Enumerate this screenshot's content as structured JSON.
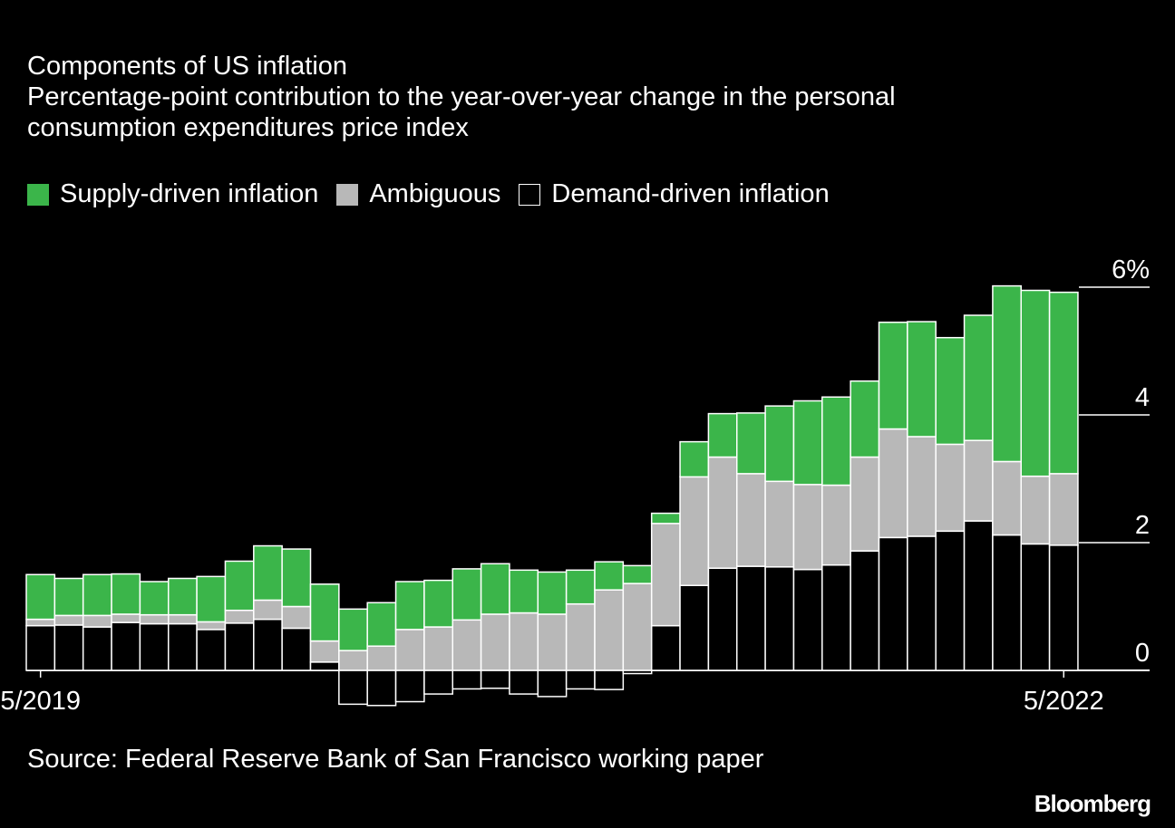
{
  "header": {
    "title": "Components of US inflation",
    "subtitle": "Percentage-point contribution to the year-over-year change in the personal consumption expenditures price index"
  },
  "legend": [
    {
      "label": "Supply-driven inflation",
      "color": "#3bb54a"
    },
    {
      "label": "Ambiguous",
      "color": "#b8b8b8"
    },
    {
      "label": "Demand-driven inflation",
      "color": "#000000"
    }
  ],
  "footer": {
    "source": "Source: Federal Reserve Bank of San Francisco working paper",
    "brand": "Bloomberg"
  },
  "chart_data": {
    "type": "bar",
    "stacked": true,
    "x": [
      "5/2019",
      "6/2019",
      "7/2019",
      "8/2019",
      "9/2019",
      "10/2019",
      "11/2019",
      "12/2019",
      "1/2020",
      "2/2020",
      "3/2020",
      "4/2020",
      "5/2020",
      "6/2020",
      "7/2020",
      "8/2020",
      "9/2020",
      "10/2020",
      "11/2020",
      "12/2020",
      "1/2021",
      "2/2021",
      "3/2021",
      "4/2021",
      "5/2021",
      "6/2021",
      "7/2021",
      "8/2021",
      "9/2021",
      "10/2021",
      "11/2021",
      "12/2021",
      "1/2022",
      "2/2022",
      "3/2022",
      "4/2022",
      "5/2022"
    ],
    "x_tick_labels": [
      "5/2019",
      "5/2022"
    ],
    "y_tick_labels": [
      "6%",
      "4",
      "2",
      "0"
    ],
    "y_ticks": [
      6,
      4,
      2,
      0
    ],
    "ylim": [
      -0.6,
      6.6
    ],
    "colors": {
      "supply": "#3bb54a",
      "ambiguous": "#b8b8b8",
      "demand": "#000000",
      "grid": "#ffffff"
    },
    "series": [
      {
        "name": "Demand-driven inflation",
        "values": [
          0.7,
          0.71,
          0.68,
          0.75,
          0.73,
          0.73,
          0.64,
          0.74,
          0.8,
          0.66,
          0.13,
          -0.53,
          -0.55,
          -0.49,
          -0.37,
          -0.29,
          -0.28,
          -0.37,
          -0.41,
          -0.29,
          -0.3,
          -0.05,
          0.7,
          1.33,
          1.6,
          1.63,
          1.62,
          1.58,
          1.65,
          1.87,
          2.08,
          2.1,
          2.18,
          2.34,
          2.12,
          1.98,
          1.96
        ]
      },
      {
        "name": "Ambiguous",
        "values": [
          0.1,
          0.15,
          0.18,
          0.13,
          0.14,
          0.14,
          0.12,
          0.2,
          0.3,
          0.34,
          0.33,
          0.31,
          0.38,
          0.64,
          0.68,
          0.79,
          0.88,
          0.9,
          0.88,
          1.04,
          1.26,
          1.36,
          1.6,
          1.7,
          1.74,
          1.45,
          1.34,
          1.33,
          1.25,
          1.47,
          1.7,
          1.56,
          1.36,
          1.26,
          1.15,
          1.06,
          1.12
        ]
      },
      {
        "name": "Supply-driven inflation",
        "values": [
          0.7,
          0.58,
          0.64,
          0.63,
          0.52,
          0.57,
          0.71,
          0.77,
          0.85,
          0.9,
          0.89,
          0.65,
          0.68,
          0.75,
          0.73,
          0.8,
          0.79,
          0.67,
          0.66,
          0.53,
          0.44,
          0.28,
          0.16,
          0.55,
          0.68,
          0.95,
          1.18,
          1.31,
          1.38,
          1.19,
          1.67,
          1.8,
          1.67,
          1.96,
          2.75,
          2.91,
          2.84
        ]
      }
    ],
    "grid": true,
    "legend_position": "top-left"
  }
}
